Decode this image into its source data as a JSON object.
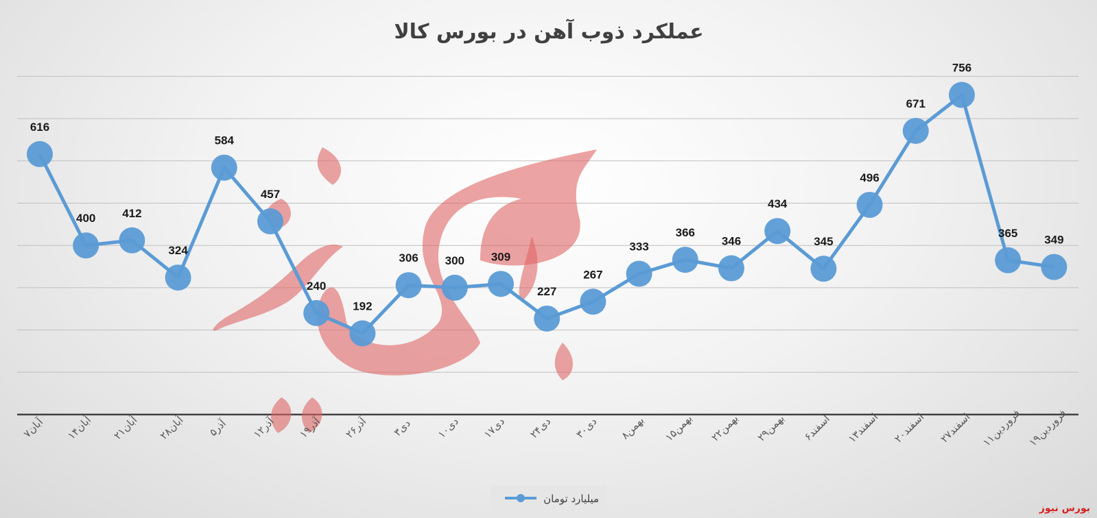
{
  "brand_corner": "بورس نیوز",
  "colors": {
    "series": "#5b9bd5",
    "watermark": "#e06666",
    "gridline": "#bfbfbf",
    "axis": "#404040"
  },
  "chart_data": {
    "type": "line",
    "title": "عملکرد ذوب آهن در بورس کالا",
    "xlabel": "",
    "ylabel": "",
    "ylim": [
      0,
      800
    ],
    "grid": true,
    "legend_position": "bottom-center",
    "categories": [
      "۷آبان",
      "۱۴آبان",
      "۲۱آبان",
      "۲۸آبان",
      "۵آذر",
      "۱۲آذر",
      "۱۹آذر",
      "۲۶آذر",
      "۳دی",
      "۱۰دی",
      "۱۷دی",
      "۲۴دی",
      "۳۰دی",
      "۸بهمن",
      "۱۵بهمن",
      "۲۲بهمن",
      "۲۹بهمن",
      "۶اسفند",
      "۱۳اسفند",
      "۲۰اسفند",
      "۲۷اسفند",
      "۱۱فروردین",
      "۱۹فروردین"
    ],
    "series": [
      {
        "name": "میلیارد تومان",
        "values": [
          616,
          400,
          412,
          324,
          584,
          457,
          240,
          192,
          306,
          300,
          309,
          227,
          267,
          333,
          366,
          346,
          434,
          345,
          496,
          671,
          756,
          365,
          349
        ]
      }
    ]
  }
}
